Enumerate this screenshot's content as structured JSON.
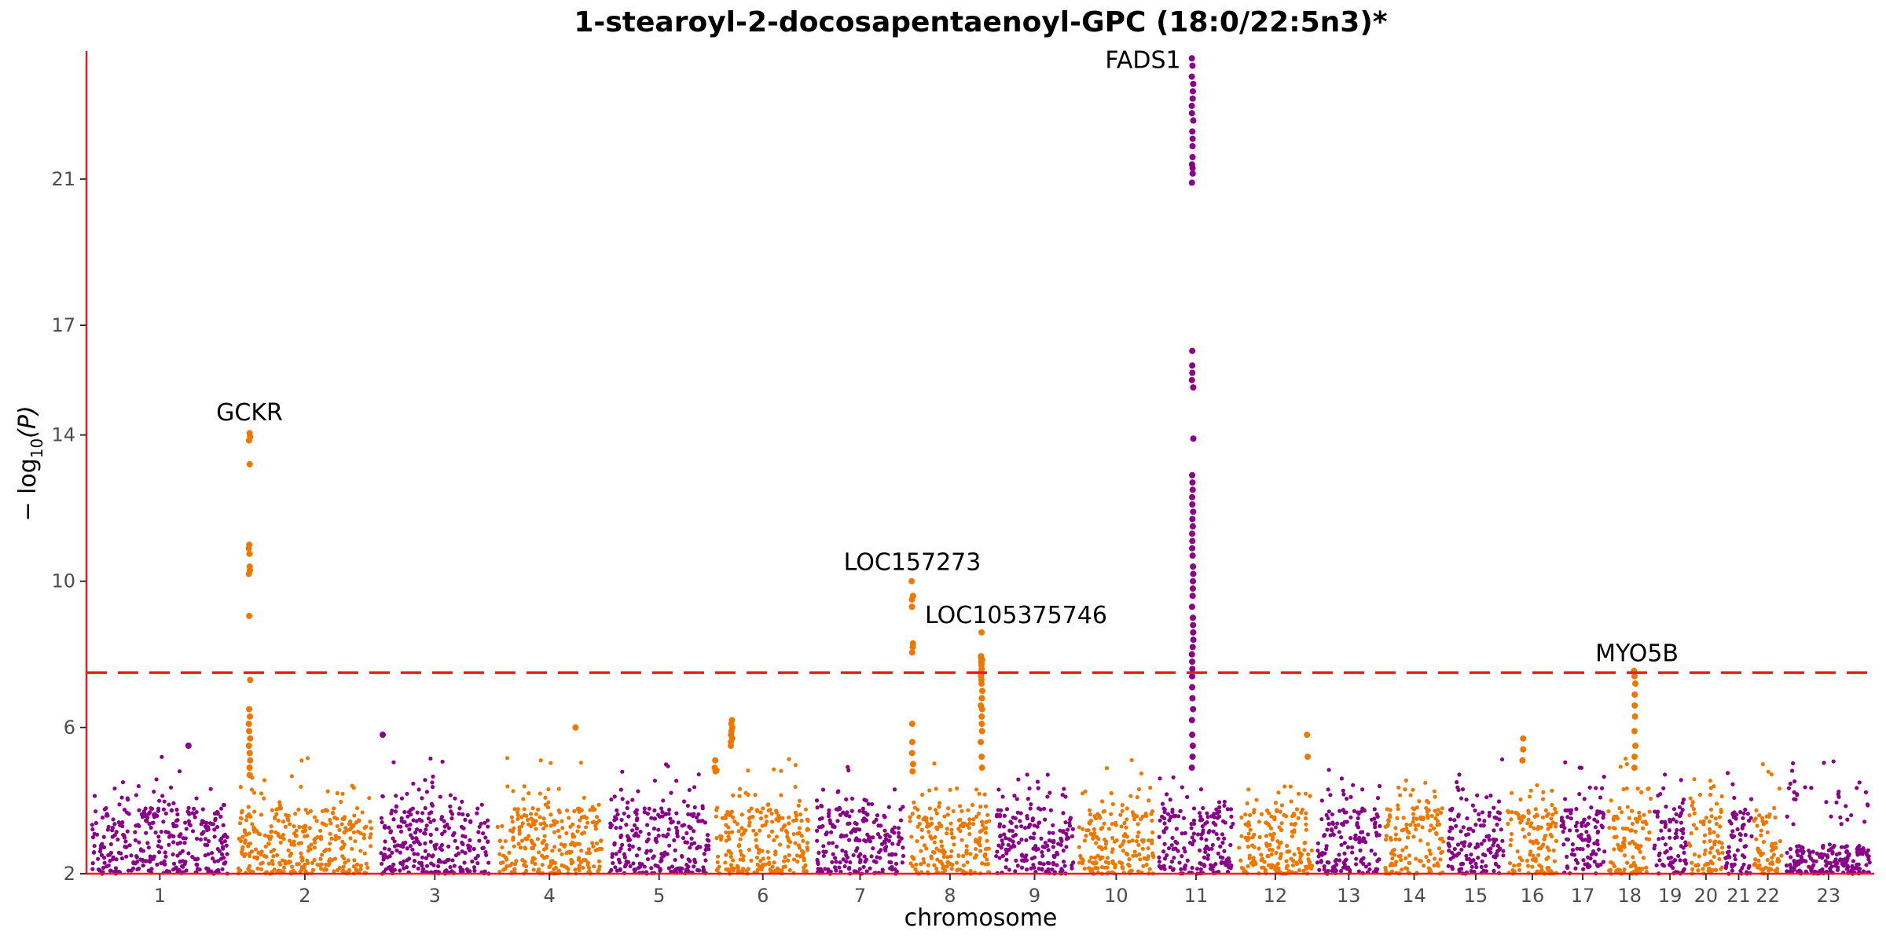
{
  "chart_data": {
    "type": "scatter",
    "subtype": "manhattan",
    "title": "1-stearoyl-2-docosapentaenoyl-GPC (18:0/22:5n3)*",
    "xlabel": "chromosome",
    "ylabel": "− log10(P)",
    "ylabel_main": "− log",
    "ylabel_sub": "10",
    "ylabel_tail": "(P)",
    "ylim": [
      2,
      24.5
    ],
    "yticks": [
      2,
      6,
      10,
      14,
      17,
      21
    ],
    "significance_threshold": 7.5,
    "threshold_style": "dashed",
    "threshold_color": "#ee1c1c",
    "axis_color": "#ee1c1c",
    "colors": [
      "#880088",
      "#ee7700"
    ],
    "grid": false,
    "chromosomes": [
      {
        "label": "1",
        "length": 249
      },
      {
        "label": "2",
        "length": 243
      },
      {
        "label": "3",
        "length": 198
      },
      {
        "label": "4",
        "length": 191
      },
      {
        "label": "5",
        "length": 181
      },
      {
        "label": "6",
        "length": 171
      },
      {
        "label": "7",
        "length": 159
      },
      {
        "label": "8",
        "length": 146
      },
      {
        "label": "9",
        "length": 141
      },
      {
        "label": "10",
        "length": 136
      },
      {
        "label": "11",
        "length": 135
      },
      {
        "label": "12",
        "length": 134
      },
      {
        "label": "13",
        "length": 115
      },
      {
        "label": "14",
        "length": 107
      },
      {
        "label": "15",
        "length": 102
      },
      {
        "label": "16",
        "length": 90
      },
      {
        "label": "17",
        "length": 81
      },
      {
        "label": "18",
        "length": 78
      },
      {
        "label": "19",
        "length": 59
      },
      {
        "label": "20",
        "length": 63
      },
      {
        "label": "21",
        "length": 48
      },
      {
        "label": "22",
        "length": 51
      },
      {
        "label": "23",
        "length": 155
      }
    ],
    "peaks": [
      {
        "gene": "GCKR",
        "chr": "2",
        "pos": 27.7,
        "top": 14.1,
        "values": [
          14.05,
          13.95,
          13.85,
          13.2,
          11.0,
          10.9,
          10.75,
          10.4,
          10.3,
          10.2,
          9.05,
          7.3,
          6.5,
          6.3,
          6.1,
          5.9,
          5.7,
          5.5,
          5.3,
          5.1,
          4.9,
          4.7
        ]
      },
      {
        "gene": "LOC157273",
        "chr": "8",
        "pos": 9.2,
        "top": 10.0,
        "values": [
          10.0,
          9.6,
          9.5,
          9.3,
          8.3,
          8.2,
          8.05,
          6.1,
          5.6,
          5.3,
          5.0,
          4.8
        ]
      },
      {
        "gene": "LOC105375746",
        "chr": "8",
        "pos": 126.5,
        "top": 8.6,
        "values": [
          8.6,
          7.95,
          7.9,
          7.85,
          7.8,
          7.75,
          7.7,
          7.6,
          7.5,
          7.45,
          7.4,
          7.3,
          7.2,
          7.0,
          6.8,
          6.6,
          6.5,
          6.3,
          6.1,
          5.9,
          5.6,
          5.2,
          4.9
        ]
      },
      {
        "gene": "FADS1",
        "chr": "11",
        "pos": 61.6,
        "top": 24.3,
        "values": [
          24.3,
          24.1,
          23.8,
          23.6,
          23.4,
          23.2,
          23.0,
          22.8,
          22.6,
          22.3,
          22.1,
          21.9,
          21.6,
          21.4,
          21.3,
          21.15,
          20.9,
          16.3,
          15.9,
          15.7,
          15.5,
          15.3,
          13.9,
          12.9,
          12.7,
          12.5,
          12.3,
          12.1,
          11.9,
          11.7,
          11.5,
          11.3,
          11.1,
          10.9,
          10.7,
          10.4,
          10.2,
          10.0,
          9.8,
          9.6,
          9.3,
          9.0,
          8.8,
          8.6,
          8.4,
          8.2,
          8.0,
          7.8,
          7.6,
          7.4,
          7.1,
          6.8,
          6.5,
          6.2,
          5.8,
          5.5,
          5.2,
          4.9
        ]
      },
      {
        "gene": "MYO5B",
        "chr": "18",
        "pos": 47.5,
        "top": 7.55,
        "values": [
          7.55,
          7.4,
          7.2,
          6.9,
          6.6,
          6.3,
          5.9,
          5.5,
          5.2,
          4.9
        ]
      }
    ],
    "minor_peaks": [
      {
        "chr": "6",
        "pos": 32.5,
        "values": [
          6.2,
          6.1,
          6.0,
          5.9,
          5.8,
          5.7,
          5.6,
          5.5
        ]
      },
      {
        "chr": "6",
        "pos": 4.5,
        "values": [
          5.1,
          4.9,
          4.8
        ]
      },
      {
        "chr": "16",
        "pos": 29.0,
        "values": [
          5.7,
          5.4,
          5.1
        ]
      },
      {
        "chr": "12",
        "pos": 121.0,
        "values": [
          5.8,
          5.2
        ]
      },
      {
        "chr": "4",
        "pos": 139.0,
        "values": [
          6.0
        ]
      },
      {
        "chr": "3",
        "pos": 12.0,
        "values": [
          5.8
        ]
      },
      {
        "chr": "1",
        "pos": 172.0,
        "values": [
          5.5
        ]
      }
    ]
  }
}
